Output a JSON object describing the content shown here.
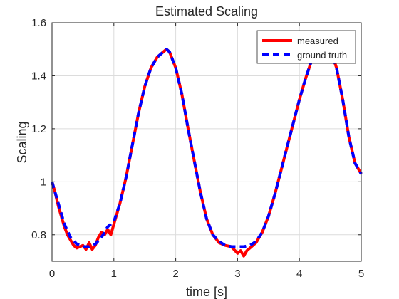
{
  "chart_data": {
    "type": "line",
    "title": "Estimated Scaling",
    "xlabel": "time [s]",
    "ylabel": "Scaling",
    "xlim": [
      0,
      5
    ],
    "ylim": [
      0.7,
      1.6
    ],
    "xticks": [
      0,
      1,
      2,
      3,
      4,
      5
    ],
    "xtick_labels": [
      "0",
      "1",
      "2",
      "3",
      "4",
      "5"
    ],
    "yticks": [
      0.8,
      1.0,
      1.2,
      1.4,
      1.6
    ],
    "ytick_labels": [
      "0.8",
      "1",
      "1.2",
      "1.4",
      "1.6"
    ],
    "grid": true,
    "legend_position": "top-right",
    "series": [
      {
        "name": "measured",
        "color": "#ff0000",
        "style": "solid",
        "x": [
          0.0,
          0.05,
          0.1,
          0.15,
          0.2,
          0.25,
          0.3,
          0.35,
          0.4,
          0.45,
          0.5,
          0.55,
          0.6,
          0.65,
          0.7,
          0.75,
          0.8,
          0.85,
          0.9,
          0.95,
          1.0,
          1.1,
          1.2,
          1.3,
          1.4,
          1.5,
          1.6,
          1.7,
          1.8,
          1.85,
          1.9,
          2.0,
          2.1,
          2.2,
          2.3,
          2.4,
          2.5,
          2.6,
          2.7,
          2.8,
          2.9,
          3.0,
          3.05,
          3.1,
          3.15,
          3.2,
          3.3,
          3.4,
          3.5,
          3.6,
          3.7,
          3.8,
          3.9,
          4.0,
          4.1,
          4.2,
          4.3,
          4.4,
          4.5,
          4.6,
          4.7,
          4.8,
          4.9,
          5.0
        ],
        "y": [
          1.0,
          0.96,
          0.91,
          0.87,
          0.83,
          0.8,
          0.78,
          0.76,
          0.75,
          0.755,
          0.76,
          0.745,
          0.77,
          0.745,
          0.76,
          0.79,
          0.81,
          0.8,
          0.82,
          0.8,
          0.84,
          0.92,
          1.02,
          1.14,
          1.26,
          1.36,
          1.43,
          1.47,
          1.49,
          1.5,
          1.49,
          1.43,
          1.33,
          1.2,
          1.08,
          0.96,
          0.86,
          0.8,
          0.77,
          0.76,
          0.755,
          0.73,
          0.74,
          0.72,
          0.74,
          0.75,
          0.77,
          0.81,
          0.87,
          0.95,
          1.04,
          1.13,
          1.22,
          1.31,
          1.39,
          1.46,
          1.5,
          1.52,
          1.5,
          1.43,
          1.31,
          1.17,
          1.07,
          1.03
        ]
      },
      {
        "name": "ground truth",
        "color": "#0000ff",
        "style": "dashed",
        "x": [
          0.0,
          0.1,
          0.2,
          0.3,
          0.4,
          0.5,
          0.6,
          0.7,
          0.8,
          0.9,
          1.0,
          1.1,
          1.2,
          1.3,
          1.4,
          1.5,
          1.6,
          1.7,
          1.8,
          1.85,
          1.9,
          2.0,
          2.1,
          2.2,
          2.3,
          2.4,
          2.5,
          2.6,
          2.7,
          2.8,
          2.9,
          3.0,
          3.1,
          3.2,
          3.3,
          3.4,
          3.5,
          3.6,
          3.7,
          3.8,
          3.9,
          4.0,
          4.1,
          4.2,
          4.3,
          4.4,
          4.5,
          4.6,
          4.7,
          4.8,
          4.9,
          5.0
        ],
        "y": [
          1.0,
          0.92,
          0.84,
          0.79,
          0.765,
          0.755,
          0.755,
          0.765,
          0.79,
          0.83,
          0.85,
          0.92,
          1.02,
          1.14,
          1.26,
          1.36,
          1.43,
          1.47,
          1.49,
          1.5,
          1.49,
          1.43,
          1.33,
          1.2,
          1.08,
          0.96,
          0.86,
          0.8,
          0.775,
          0.76,
          0.755,
          0.755,
          0.755,
          0.76,
          0.775,
          0.81,
          0.87,
          0.95,
          1.04,
          1.13,
          1.22,
          1.31,
          1.39,
          1.46,
          1.5,
          1.52,
          1.5,
          1.43,
          1.31,
          1.17,
          1.07,
          1.03
        ]
      }
    ]
  }
}
